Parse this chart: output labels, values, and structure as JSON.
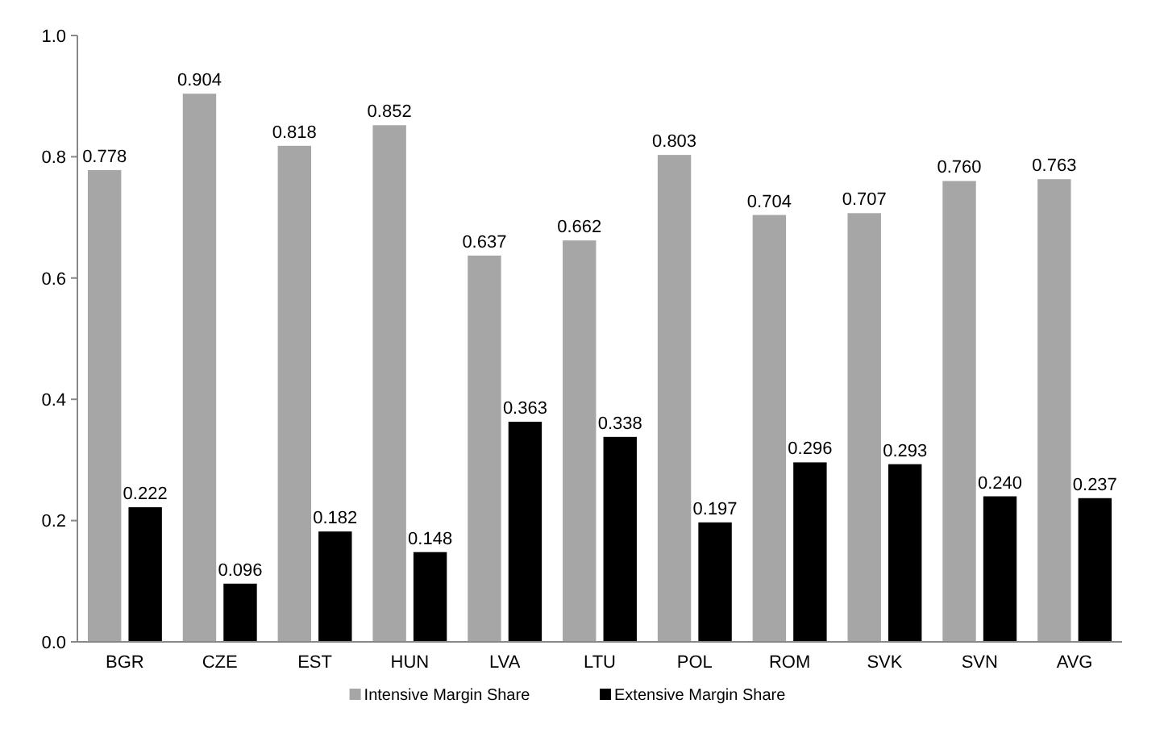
{
  "chart_data": {
    "type": "bar",
    "categories": [
      "BGR",
      "CZE",
      "EST",
      "HUN",
      "LVA",
      "LTU",
      "POL",
      "ROM",
      "SVK",
      "SVN",
      "AVG"
    ],
    "series": [
      {
        "name": "Intensive Margin Share",
        "color": "#a6a6a6",
        "values": [
          0.778,
          0.904,
          0.818,
          0.852,
          0.637,
          0.662,
          0.803,
          0.704,
          0.707,
          0.76,
          0.763
        ],
        "value_labels": [
          "0.778",
          "0.904",
          "0.818",
          "0.852",
          "0.637",
          "0.662",
          "0.803",
          "0.704",
          "0.707",
          "0.760",
          "0.763"
        ]
      },
      {
        "name": "Extensive Margin Share",
        "color": "#000000",
        "values": [
          0.222,
          0.096,
          0.182,
          0.148,
          0.363,
          0.338,
          0.197,
          0.296,
          0.293,
          0.24,
          0.237
        ],
        "value_labels": [
          "0.222",
          "0.096",
          "0.182",
          "0.148",
          "0.363",
          "0.338",
          "0.197",
          "0.296",
          "0.293",
          "0.240",
          "0.237"
        ]
      }
    ],
    "ylim": [
      0,
      1
    ],
    "yticks": [
      {
        "value": 0,
        "label": "0.0"
      },
      {
        "value": 0.2,
        "label": "0.2"
      },
      {
        "value": 0.4,
        "label": "0.4"
      },
      {
        "value": 0.6,
        "label": "0.6"
      },
      {
        "value": 0.8,
        "label": "0.8"
      },
      {
        "value": 1,
        "label": "1.0"
      }
    ],
    "grid": false,
    "legend": "bottom"
  }
}
